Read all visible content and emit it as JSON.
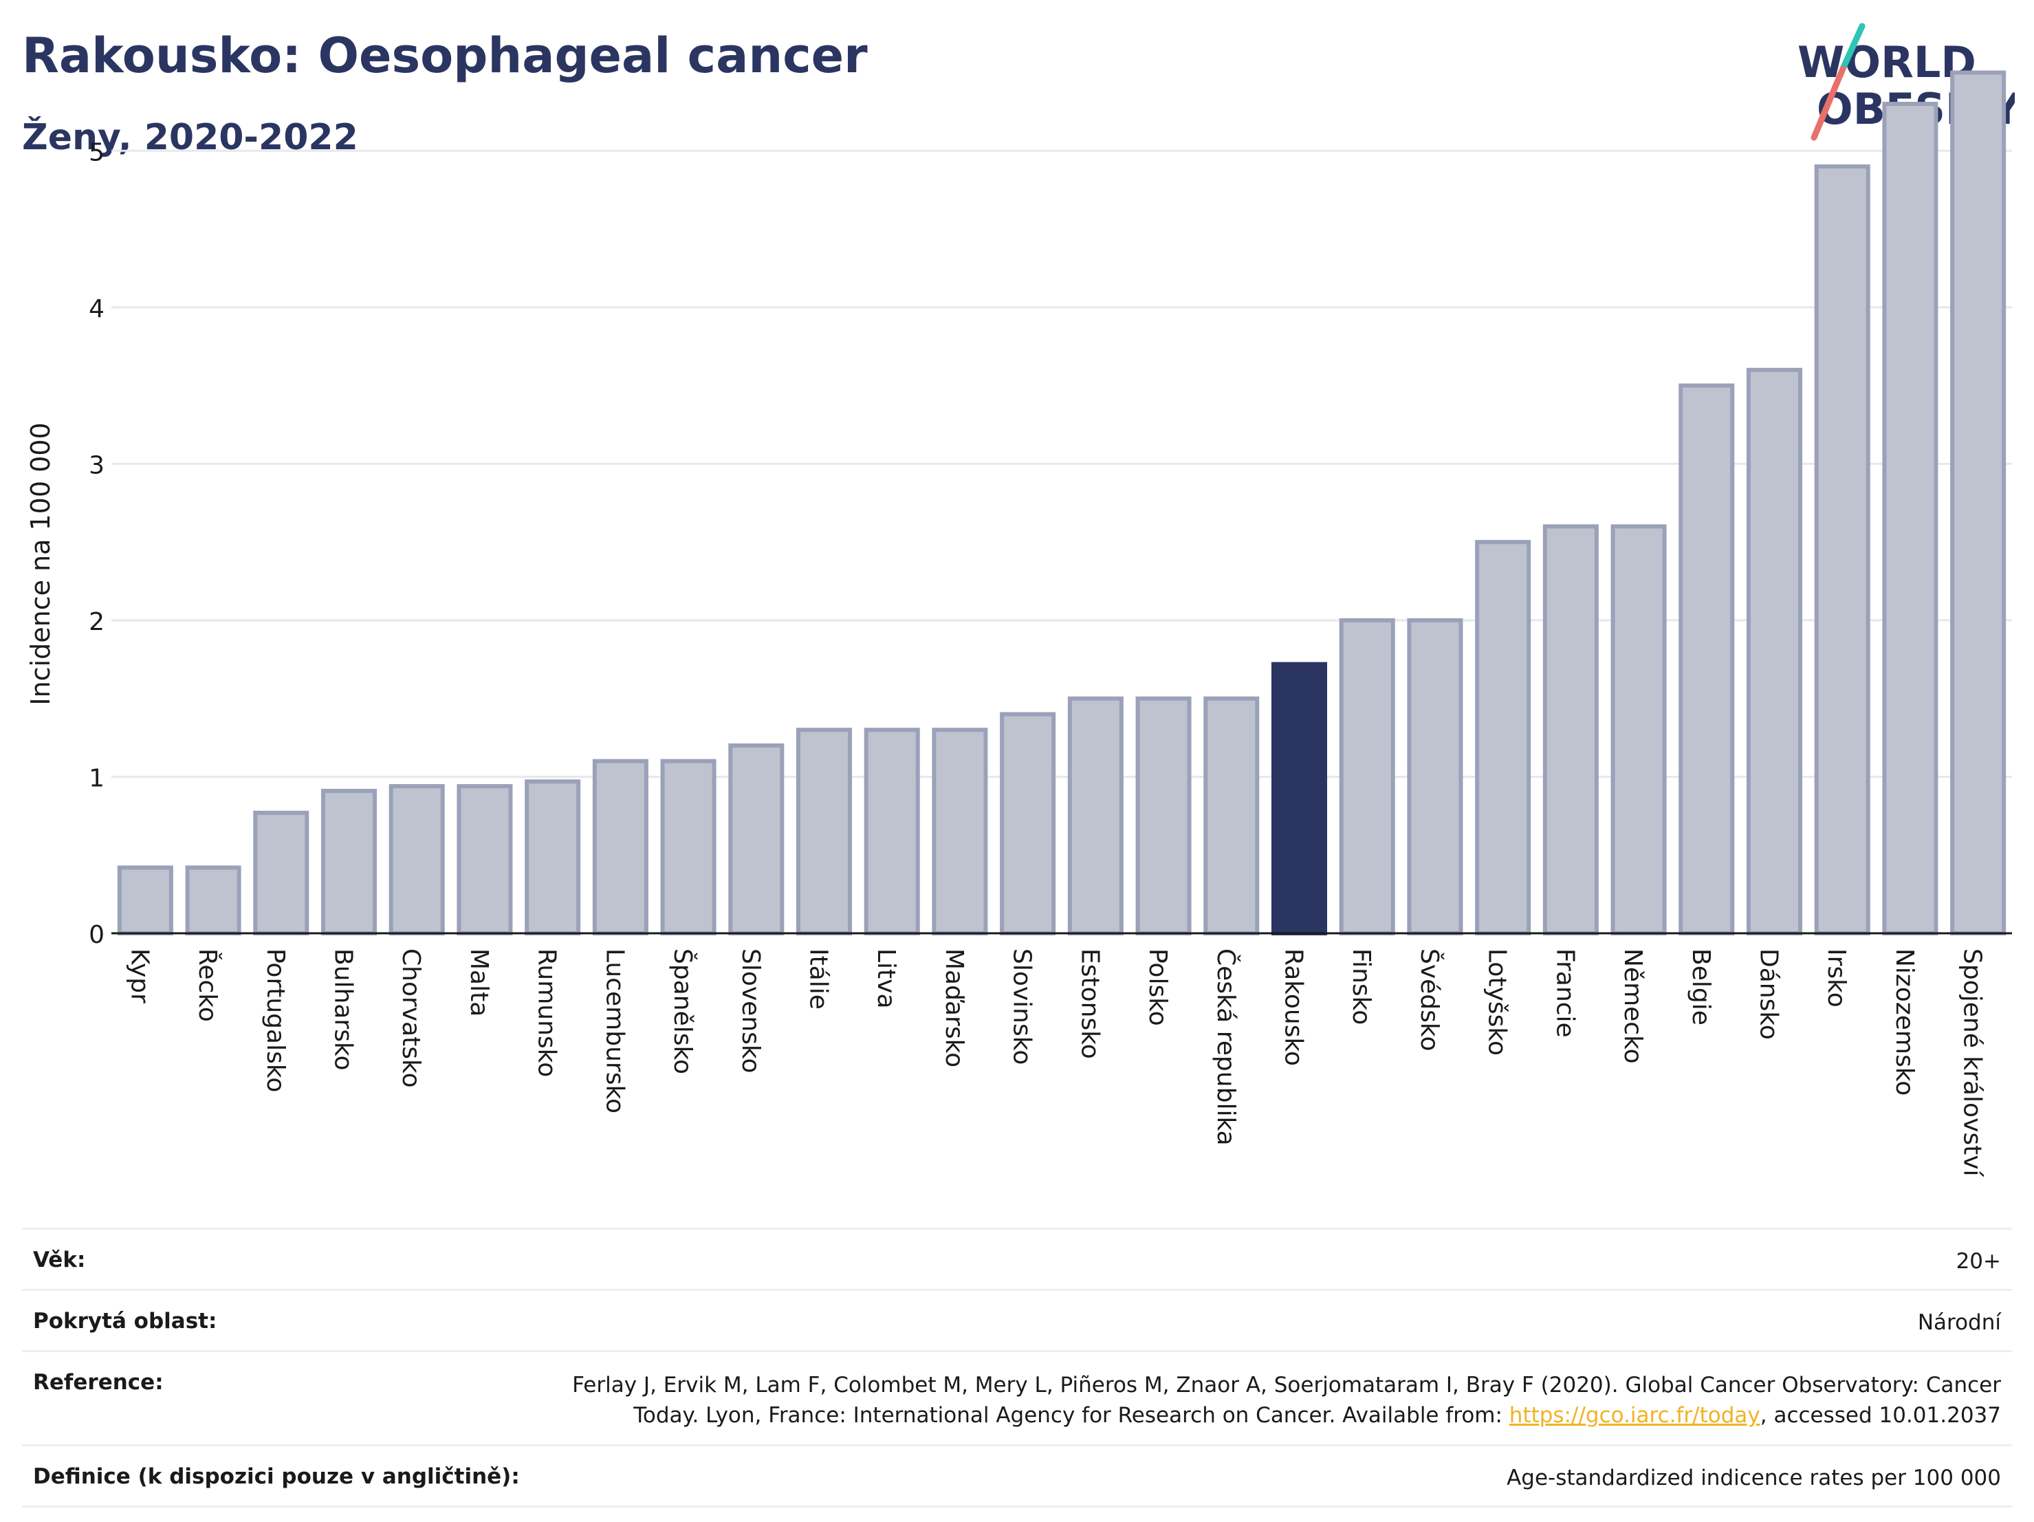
{
  "header": {
    "title": "Rakousko: Oesophageal cancer",
    "subtitle": "Ženy, 2020-2022"
  },
  "logo": {
    "line1": "WORLD",
    "line2": "OBESITY"
  },
  "colors": {
    "highlight": "#2b3561",
    "bar": "#bfc3d0",
    "bar_border": "#9aa1b8",
    "grid": "#e6e8ee"
  },
  "chart_data": {
    "type": "bar",
    "ylabel": "Incidence na 100 000",
    "ylim": [
      0,
      5.7
    ],
    "yticks": [
      0,
      1,
      2,
      3,
      4,
      5
    ],
    "highlight": "Rakousko",
    "categories": [
      "Kypr",
      "Řecko",
      "Portugalsko",
      "Bulharsko",
      "Chorvatsko",
      "Malta",
      "Rumunsko",
      "Lucembursko",
      "Španělsko",
      "Slovensko",
      "Itálie",
      "Litva",
      "Maďarsko",
      "Slovinsko",
      "Estonsko",
      "Polsko",
      "Česká republika",
      "Rakousko",
      "Finsko",
      "Švédsko",
      "Lotyšsko",
      "Francie",
      "Německo",
      "Belgie",
      "Dánsko",
      "Irsko",
      "Nizozemsko",
      "Spojené království"
    ],
    "values": [
      0.42,
      0.42,
      0.77,
      0.91,
      0.94,
      0.94,
      0.97,
      1.1,
      1.1,
      1.2,
      1.3,
      1.3,
      1.3,
      1.4,
      1.5,
      1.5,
      1.5,
      1.72,
      2.0,
      2.0,
      2.5,
      2.6,
      2.6,
      3.5,
      3.6,
      4.9,
      5.3,
      5.5
    ],
    "grid": true
  },
  "footer": {
    "age_label": "Věk:",
    "age_value": "20+",
    "area_label": "Pokrytá oblast:",
    "area_value": "Národní",
    "reference_label": "Reference:",
    "reference_line1": "Ferlay J, Ervik M, Lam F, Colombet M, Mery L, Piñeros M, Znaor A, Soerjomataram I, Bray F (2020). Global Cancer Observatory: Cancer",
    "reference_line2_pre": "Today. Lyon, France: International Agency for Research on Cancer. Available from: ",
    "reference_link": "https://gco.iarc.fr/today",
    "reference_line2_post": ", accessed 10.01.2037",
    "definition_label": "Definice (k dispozici pouze v angličtině):",
    "definition_value": "Age-standardized indicence rates per 100 000"
  }
}
